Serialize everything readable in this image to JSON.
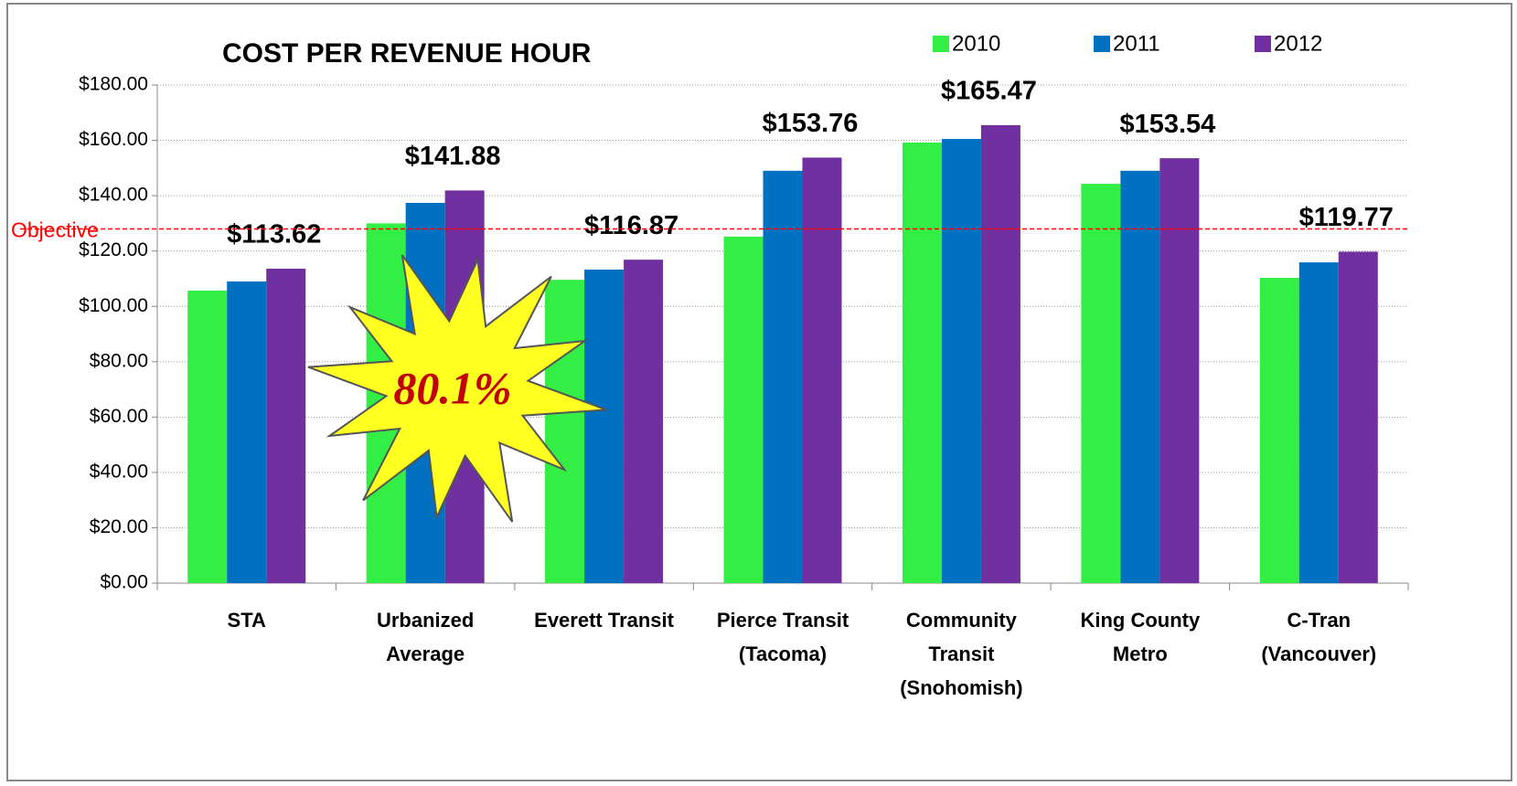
{
  "chart_data": {
    "type": "bar",
    "title": "COST PER REVENUE HOUR",
    "categories": [
      "STA",
      "Urbanized\nAverage",
      "Everett Transit",
      "Pierce Transit\n(Tacoma)",
      "Community\nTransit\n(Snohomish)",
      "King County\nMetro",
      "C-Tran\n(Vancouver)"
    ],
    "series": [
      {
        "name": "2010",
        "color": "#33ee44",
        "values": [
          105.7,
          130,
          109.6,
          125.2,
          159.2,
          144.3,
          110.3
        ]
      },
      {
        "name": "2011",
        "color": "#0070c0",
        "values": [
          109,
          137.4,
          113.3,
          149,
          160.5,
          149,
          115.9
        ]
      },
      {
        "name": "2012",
        "color": "#7030a0",
        "values": [
          113.62,
          141.88,
          116.87,
          153.76,
          165.47,
          153.54,
          119.77
        ],
        "value_labels": [
          "$113.62",
          "$141.88",
          "$116.87",
          "$153.76",
          "$165.47",
          "$153.54",
          "$119.77"
        ]
      }
    ],
    "ylim": [
      0,
      180
    ],
    "yticks": [
      {
        "value": 0,
        "label": "$0.00"
      },
      {
        "value": 20,
        "label": "$20.00"
      },
      {
        "value": 40,
        "label": "$40.00"
      },
      {
        "value": 60,
        "label": "$60.00"
      },
      {
        "value": 80,
        "label": "$80.00"
      },
      {
        "value": 100,
        "label": "$100.00"
      },
      {
        "value": 120,
        "label": "$120.00"
      },
      {
        "value": 140,
        "label": "$140.00"
      },
      {
        "value": 160,
        "label": "$160.00"
      },
      {
        "value": 180,
        "label": "$180.00"
      }
    ],
    "grid": true,
    "legend": "top-right",
    "objective": {
      "label": "Objective",
      "value": 128,
      "color": "#ff0000"
    },
    "annotation": "80.1%"
  }
}
